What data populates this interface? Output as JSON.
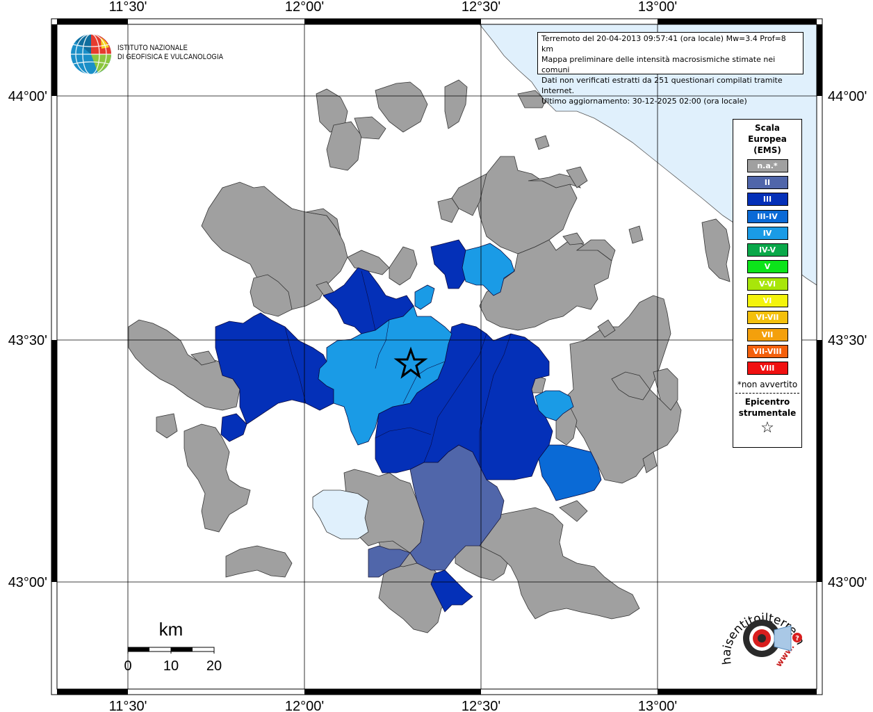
{
  "frame": {
    "top_longitude_labels": [
      "11°30'",
      "12°00'",
      "12°30'",
      "13°00'"
    ],
    "bottom_longitude_labels": [
      "11°30'",
      "12°00'",
      "12°30'",
      "13°00'"
    ],
    "left_latitude_labels": [
      "44°00'",
      "43°30'",
      "43°00'"
    ],
    "right_latitude_labels": [
      "44°00'",
      "43°30'",
      "43°00'"
    ]
  },
  "info": {
    "line1": "Terremoto del 20-04-2013 09:57:41 (ora locale) Mw=3.4 Prof=8 km",
    "line2": "Mappa preliminare delle intensità macrosismiche stimate nei comuni",
    "line3": "Dati non verificati estratti da 251 questionari compilati tramite Internet.",
    "line4": "Ultimo aggiornamento: 30-12-2025 02:00 (ora locale)"
  },
  "logo": {
    "line1": "ISTITUTO NAZIONALE",
    "line2": "DI GEOFISICA E VULCANOLOGIA"
  },
  "legend": {
    "title_line1": "Scala",
    "title_line2": "Europea",
    "title_line3": "(EMS)",
    "items": [
      {
        "label": "n.a.*",
        "color": "#a0a0a0"
      },
      {
        "label": "II",
        "color": "#5066aa"
      },
      {
        "label": "III",
        "color": "#0430b8"
      },
      {
        "label": "III-IV",
        "color": "#0a6ad6"
      },
      {
        "label": "IV",
        "color": "#1a9be6"
      },
      {
        "label": "IV-V",
        "color": "#0aa84a"
      },
      {
        "label": "V",
        "color": "#0ce41a"
      },
      {
        "label": "V-VI",
        "color": "#a8e60a"
      },
      {
        "label": "VI",
        "color": "#f4f40c"
      },
      {
        "label": "VI-VII",
        "color": "#f4c00c"
      },
      {
        "label": "VII",
        "color": "#f4a00c"
      },
      {
        "label": "VII-VIII",
        "color": "#f4600c"
      },
      {
        "label": "VIII",
        "color": "#f01010"
      }
    ],
    "note": "*non avvertito",
    "epicenter_line1": "Epicentro",
    "epicenter_line2": "strumentale",
    "epicenter_symbol": "☆"
  },
  "scale_bar": {
    "unit": "km",
    "ticks": [
      "0",
      "10",
      "20"
    ]
  },
  "colors": {
    "sea": "#e0f0fc",
    "na": "#a0a0a0",
    "II": "#5066aa",
    "III": "#0430b8",
    "III-IV": "#0a6ad6",
    "IV": "#1a9be6",
    "lake": "#e0f0fc"
  },
  "hsit_logo": {
    "text": "haisentitoilterremoto.it",
    "prefix": "www."
  }
}
